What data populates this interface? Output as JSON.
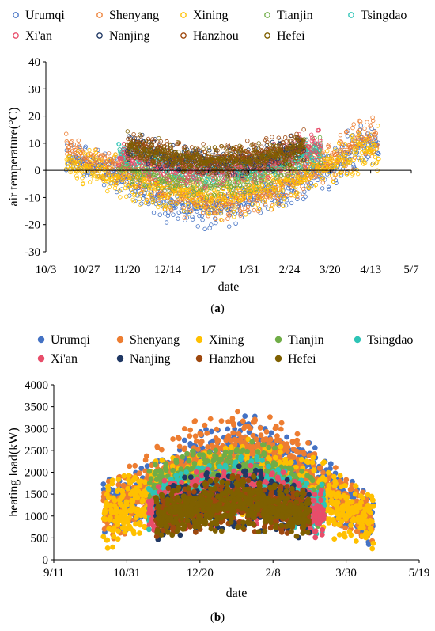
{
  "chart_data": [
    {
      "type": "scatter",
      "panel_label": "a",
      "xlabel": "date",
      "ylabel": "air temperature(°C)",
      "x_ticks": [
        "10/3",
        "10/27",
        "11/20",
        "12/14",
        "1/7",
        "1/31",
        "2/24",
        "3/20",
        "4/13",
        "5/7"
      ],
      "y_ticks": [
        "-30",
        "-20",
        "-10",
        "0",
        "10",
        "20",
        "30",
        "40"
      ],
      "ylim": [
        -30,
        40
      ],
      "x_range": [
        "10/3",
        "5/7"
      ],
      "grid": false,
      "legend_position": "top",
      "marker": "open-circle",
      "series": [
        {
          "name": "Urumqi",
          "color": "#4472C4",
          "start": "10/15",
          "end": "4/18",
          "x": [
            "10/15",
            "11/20",
            "12/14",
            "1/7",
            "1/31",
            "2/24",
            "3/20",
            "4/13",
            "4/18"
          ],
          "mean": [
            5,
            -3,
            -12,
            -14,
            -10,
            -6,
            2,
            12,
            10
          ],
          "amplitude": [
            6,
            8,
            8,
            9,
            9,
            9,
            9,
            10,
            9
          ]
        },
        {
          "name": "Shenyang",
          "color": "#ED7D31",
          "start": "10/15",
          "end": "4/17",
          "x": [
            "10/15",
            "11/20",
            "12/14",
            "1/7",
            "1/31",
            "2/24",
            "3/20",
            "4/13",
            "4/17"
          ],
          "mean": [
            8,
            0,
            -8,
            -12,
            -10,
            -4,
            3,
            12,
            12
          ],
          "amplitude": [
            6,
            7,
            8,
            8,
            8,
            8,
            9,
            10,
            9
          ]
        },
        {
          "name": "Xining",
          "color": "#FFC000",
          "start": "10/15",
          "end": "4/18",
          "x": [
            "10/15",
            "11/20",
            "12/14",
            "1/7",
            "1/31",
            "2/24",
            "3/20",
            "4/13",
            "4/18"
          ],
          "mean": [
            3,
            -3,
            -8,
            -10,
            -8,
            -4,
            2,
            8,
            8
          ],
          "amplitude": [
            8,
            9,
            9,
            9,
            9,
            9,
            9,
            10,
            9
          ]
        },
        {
          "name": "Tianjin",
          "color": "#70AD47",
          "start": "11/15",
          "end": "3/15",
          "x": [
            "11/15",
            "12/14",
            "1/7",
            "1/31",
            "2/24",
            "3/15"
          ],
          "mean": [
            2,
            -3,
            -5,
            -3,
            3,
            8
          ],
          "amplitude": [
            6,
            6,
            6,
            6,
            7,
            7
          ]
        },
        {
          "name": "Tsingdao",
          "color": "#2EC4B6",
          "start": "11/15",
          "end": "3/15",
          "x": [
            "11/15",
            "12/14",
            "1/7",
            "1/31",
            "2/24",
            "3/15"
          ],
          "mean": [
            6,
            2,
            0,
            1,
            4,
            8
          ],
          "amplitude": [
            5,
            5,
            5,
            5,
            5,
            6
          ]
        },
        {
          "name": "Xi'an",
          "color": "#E84D6A",
          "start": "11/15",
          "end": "3/15",
          "x": [
            "11/15",
            "12/14",
            "1/7",
            "1/31",
            "2/24",
            "3/15"
          ],
          "mean": [
            5,
            1,
            -1,
            1,
            5,
            10
          ],
          "amplitude": [
            6,
            6,
            6,
            6,
            7,
            7
          ]
        },
        {
          "name": "Nanjing",
          "color": "#203864",
          "start": "11/20",
          "end": "3/5",
          "x": [
            "11/20",
            "12/14",
            "1/7",
            "1/31",
            "2/24",
            "3/5"
          ],
          "mean": [
            9,
            5,
            3,
            4,
            7,
            9
          ],
          "amplitude": [
            6,
            6,
            6,
            6,
            6,
            6
          ]
        },
        {
          "name": "Hanzhou",
          "color": "#9E480E",
          "start": "11/20",
          "end": "3/5",
          "x": [
            "11/20",
            "12/14",
            "1/7",
            "1/31",
            "2/24",
            "3/5"
          ],
          "mean": [
            10,
            6,
            4,
            5,
            8,
            10
          ],
          "amplitude": [
            6,
            6,
            6,
            6,
            6,
            6
          ]
        },
        {
          "name": "Hefei",
          "color": "#7F6000",
          "start": "11/20",
          "end": "3/5",
          "x": [
            "11/20",
            "12/14",
            "1/7",
            "1/31",
            "2/24",
            "3/5"
          ],
          "mean": [
            9,
            5,
            3,
            4,
            7,
            9
          ],
          "amplitude": [
            6,
            6,
            6,
            6,
            6,
            6
          ]
        }
      ]
    },
    {
      "type": "scatter",
      "panel_label": "b",
      "xlabel": "date",
      "ylabel": "heating load(kW)",
      "x_ticks": [
        "9/11",
        "10/31",
        "12/20",
        "2/8",
        "3/30",
        "5/19"
      ],
      "y_ticks": [
        "0",
        "500",
        "1000",
        "1500",
        "2000",
        "2500",
        "3000",
        "3500",
        "4000"
      ],
      "ylim": [
        0,
        4000
      ],
      "x_range": [
        "9/11",
        "5/19"
      ],
      "grid": false,
      "legend_position": "top",
      "marker": "filled-circle",
      "series": [
        {
          "name": "Urumqi",
          "color": "#4472C4",
          "start": "10/15",
          "end": "4/18",
          "x": [
            "10/15",
            "11/20",
            "12/20",
            "1/20",
            "2/8",
            "3/10",
            "3/30",
            "4/18"
          ],
          "mean": [
            1100,
            1600,
            2100,
            2500,
            2300,
            1800,
            1200,
            900
          ],
          "amplitude": [
            700,
            800,
            900,
            1000,
            900,
            800,
            700,
            600
          ]
        },
        {
          "name": "Shenyang",
          "color": "#ED7D31",
          "start": "10/15",
          "end": "4/17",
          "x": [
            "10/15",
            "11/20",
            "12/20",
            "1/20",
            "2/8",
            "3/10",
            "3/30",
            "4/17"
          ],
          "mean": [
            1000,
            1700,
            2300,
            2600,
            2400,
            1800,
            1200,
            900
          ],
          "amplitude": [
            800,
            900,
            1000,
            900,
            900,
            800,
            700,
            600
          ]
        },
        {
          "name": "Xining",
          "color": "#FFC000",
          "start": "10/15",
          "end": "4/18",
          "x": [
            "10/15",
            "11/20",
            "12/20",
            "1/20",
            "2/8",
            "3/10",
            "3/30",
            "4/18"
          ],
          "mean": [
            1000,
            1400,
            1700,
            1900,
            1800,
            1500,
            1100,
            900
          ],
          "amplitude": [
            800,
            900,
            900,
            900,
            900,
            900,
            800,
            700
          ]
        },
        {
          "name": "Tianjin",
          "color": "#70AD47",
          "start": "11/15",
          "end": "3/15",
          "x": [
            "11/15",
            "12/20",
            "1/20",
            "2/8",
            "3/15"
          ],
          "mean": [
            1400,
            1900,
            2000,
            1900,
            1200
          ],
          "amplitude": [
            700,
            800,
            800,
            800,
            700
          ]
        },
        {
          "name": "Tsingdao",
          "color": "#2EC4B6",
          "start": "11/15",
          "end": "3/15",
          "x": [
            "11/15",
            "12/20",
            "1/20",
            "2/8",
            "3/15"
          ],
          "mean": [
            1200,
            1600,
            1700,
            1600,
            1100
          ],
          "amplitude": [
            600,
            700,
            700,
            700,
            600
          ]
        },
        {
          "name": "Xi'an",
          "color": "#E84D6A",
          "start": "11/15",
          "end": "3/15",
          "x": [
            "11/15",
            "12/20",
            "1/20",
            "2/8",
            "3/15"
          ],
          "mean": [
            1100,
            1400,
            1500,
            1400,
            1000
          ],
          "amplitude": [
            600,
            700,
            700,
            700,
            600
          ]
        },
        {
          "name": "Nanjing",
          "color": "#203864",
          "start": "11/20",
          "end": "3/5",
          "x": [
            "11/20",
            "12/20",
            "1/20",
            "2/8",
            "3/5"
          ],
          "mean": [
            1100,
            1300,
            1400,
            1300,
            1100
          ],
          "amplitude": [
            700,
            700,
            800,
            700,
            700
          ]
        },
        {
          "name": "Hanzhou",
          "color": "#9E480E",
          "start": "11/20",
          "end": "3/5",
          "x": [
            "11/20",
            "12/20",
            "1/20",
            "2/8",
            "3/5"
          ],
          "mean": [
            1000,
            1200,
            1300,
            1200,
            1000
          ],
          "amplitude": [
            600,
            600,
            700,
            600,
            600
          ]
        },
        {
          "name": "Hefei",
          "color": "#7F6000",
          "start": "11/20",
          "end": "3/5",
          "x": [
            "11/20",
            "12/20",
            "1/20",
            "2/8",
            "3/5"
          ],
          "mean": [
            1000,
            1200,
            1300,
            1200,
            1000
          ],
          "amplitude": [
            600,
            600,
            700,
            600,
            600
          ]
        }
      ]
    }
  ],
  "captions": {
    "a": "a",
    "b": "b"
  }
}
